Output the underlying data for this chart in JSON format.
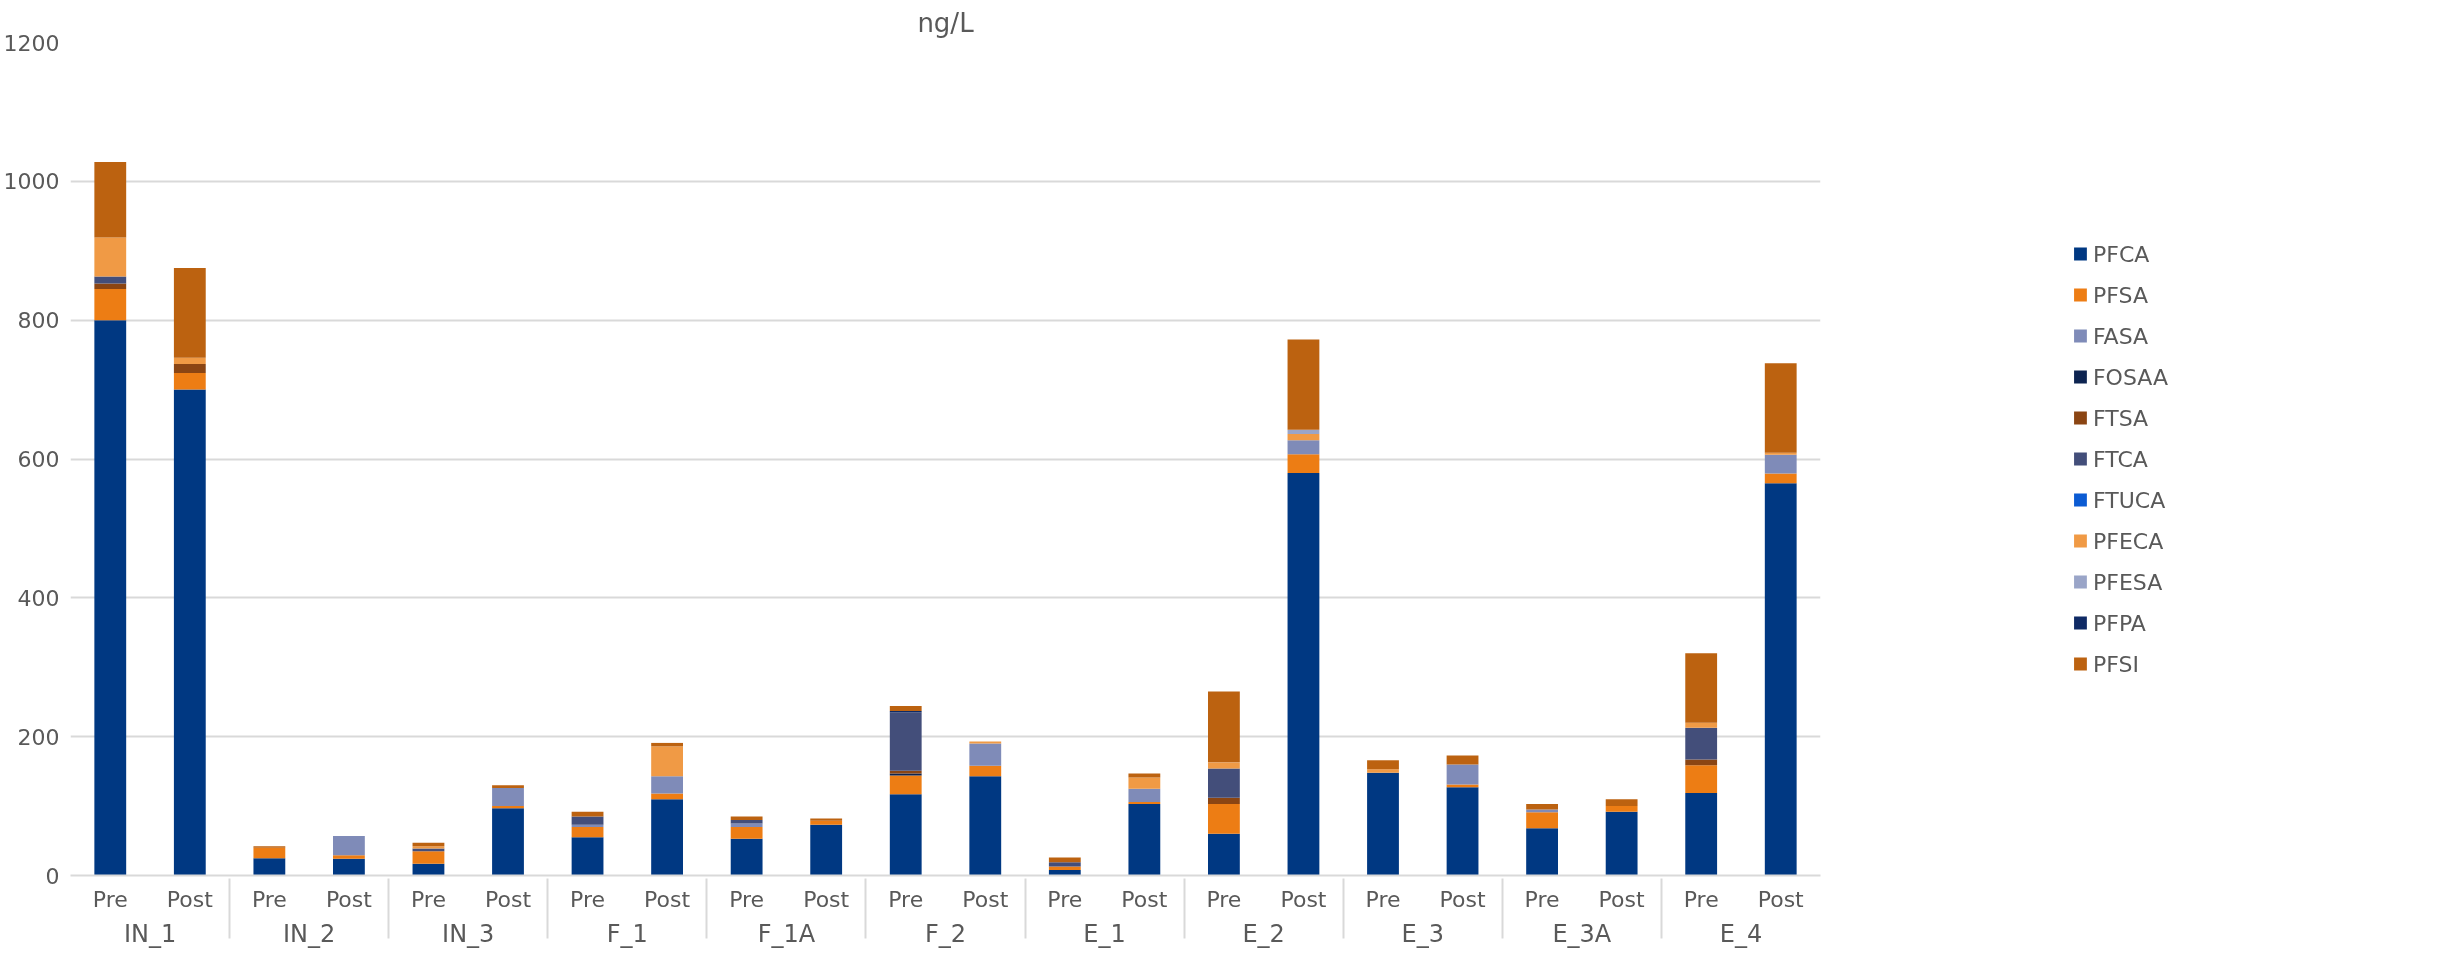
{
  "chart_data": {
    "type": "bar",
    "title": "ng/L",
    "stacked": true,
    "grid": "y",
    "legend": "right",
    "categories": [
      "Pre",
      "Post",
      "Pre",
      "Post",
      "Pre",
      "Post",
      "Pre",
      "Post",
      "Pre",
      "Post",
      "Pre",
      "Post",
      "Pre",
      "Post",
      "Pre",
      "Post",
      "Pre",
      "Post",
      "Pre",
      "Post",
      "Pre",
      "Post"
    ],
    "annotations": [
      "IN_1",
      "IN_2",
      "IN_3",
      "F_1",
      "F_1A",
      "F_2",
      "E_1",
      "E_2",
      "E_3",
      "E_3A",
      "E_4"
    ],
    "ylim": [
      0,
      1200
    ],
    "yticks": [
      0,
      200,
      400,
      600,
      800,
      1000,
      1200
    ],
    "series": [
      {
        "name": "PFCA",
        "color": "#003882",
        "values": [
          800,
          700,
          25,
          24,
          17,
          97,
          55,
          110,
          53,
          73,
          117,
          143,
          8,
          103,
          60,
          580,
          148,
          127,
          68,
          92,
          119,
          565
        ]
      },
      {
        "name": "PFSA",
        "color": "#ed7d14",
        "values": [
          45,
          24,
          15,
          5,
          18,
          3,
          15,
          8,
          17,
          6,
          27,
          15,
          5,
          3,
          43,
          27,
          0,
          4,
          23,
          8,
          40,
          14
        ]
      },
      {
        "name": "FASA",
        "color": "#7f8bb8",
        "values": [
          0,
          0,
          0,
          28,
          0,
          26,
          3,
          25,
          5,
          0,
          0,
          32,
          0,
          19,
          0,
          20,
          0,
          29,
          4,
          0,
          0,
          27
        ]
      },
      {
        "name": "FOSAA",
        "color": "#0d2451",
        "values": [
          0,
          0,
          0,
          0,
          0,
          0,
          0,
          0,
          0,
          0,
          3,
          0,
          0,
          0,
          0,
          0,
          0,
          0,
          0,
          0,
          0,
          0
        ]
      },
      {
        "name": "FTSA",
        "color": "#8b4513",
        "values": [
          8,
          13,
          0,
          0,
          0,
          0,
          0,
          0,
          0,
          0,
          4,
          0,
          0,
          0,
          9,
          0,
          0,
          0,
          0,
          0,
          8,
          0
        ]
      },
      {
        "name": "FTCA",
        "color": "#434e7a",
        "values": [
          10,
          0,
          0,
          0,
          4,
          0,
          12,
          0,
          5,
          0,
          84,
          0,
          6,
          0,
          42,
          0,
          0,
          0,
          0,
          0,
          46,
          0
        ]
      },
      {
        "name": "FTUCA",
        "color": "#0b5bd3",
        "values": [
          0,
          0,
          0,
          0,
          0,
          0,
          0,
          0,
          0,
          0,
          0,
          0,
          0,
          0,
          0,
          0,
          0,
          0,
          0,
          0,
          0,
          0
        ]
      },
      {
        "name": "PFECA",
        "color": "#f09a45",
        "values": [
          56,
          9,
          0,
          0,
          3,
          0,
          0,
          43,
          0,
          0,
          0,
          3,
          0,
          16,
          9,
          9,
          5,
          0,
          0,
          0,
          7,
          3
        ]
      },
      {
        "name": "PFESA",
        "color": "#9aa5c8",
        "values": [
          0,
          0,
          0,
          0,
          0,
          0,
          0,
          0,
          0,
          0,
          0,
          0,
          0,
          0,
          0,
          6,
          0,
          0,
          0,
          0,
          0,
          0
        ]
      },
      {
        "name": "PFPA",
        "color": "#0f2a65",
        "values": [
          0,
          0,
          0,
          0,
          0,
          0,
          0,
          0,
          0,
          0,
          2,
          0,
          0,
          0,
          0,
          0,
          0,
          0,
          0,
          0,
          0,
          0
        ]
      },
      {
        "name": "PFSI",
        "color": "#bc6210",
        "values": [
          109,
          129,
          2,
          0,
          5,
          4,
          7,
          5,
          5,
          3,
          7,
          0,
          7,
          6,
          102,
          130,
          13,
          13,
          8,
          10,
          100,
          129
        ]
      }
    ]
  }
}
